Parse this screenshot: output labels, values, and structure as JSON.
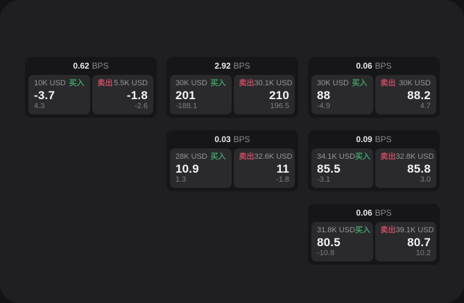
{
  "labels": {
    "buy": "买入",
    "sell": "卖出",
    "bps_unit": "BPS"
  },
  "colors": {
    "buy_green": "#3f9e66",
    "sell_red": "#c24b61"
  },
  "cards": [
    {
      "bps": "0.62",
      "buy": {
        "amount": "10K USD",
        "value": "-3.7",
        "delta": "4.3"
      },
      "sell": {
        "amount": "5.5K USD",
        "value": "-1.8",
        "delta": "-2.6"
      }
    },
    {
      "bps": "2.92",
      "buy": {
        "amount": "30K USD",
        "value": "201",
        "delta": "-188.1"
      },
      "sell": {
        "amount": "30.1K USD",
        "value": "210",
        "delta": "196.5"
      }
    },
    {
      "bps": "0.06",
      "buy": {
        "amount": "30K USD",
        "value": "88",
        "delta": "-4.9"
      },
      "sell": {
        "amount": "30K USD",
        "value": "88.2",
        "delta": "4.7"
      }
    },
    {
      "bps": "0.03",
      "buy": {
        "amount": "28K USD",
        "value": "10.9",
        "delta": "1.3"
      },
      "sell": {
        "amount": "32.6K USD",
        "value": "11",
        "delta": "-1.8"
      }
    },
    {
      "bps": "0.09",
      "buy": {
        "amount": "34.1K USD",
        "value": "85.5",
        "delta": "-3.1"
      },
      "sell": {
        "amount": "32.8K USD",
        "value": "85.8",
        "delta": "3.0"
      }
    },
    {
      "bps": "0.06",
      "buy": {
        "amount": "31.8K USD",
        "value": "80.5",
        "delta": "-10.8"
      },
      "sell": {
        "amount": "39.1K USD",
        "value": "80.7",
        "delta": "10.2"
      }
    }
  ]
}
